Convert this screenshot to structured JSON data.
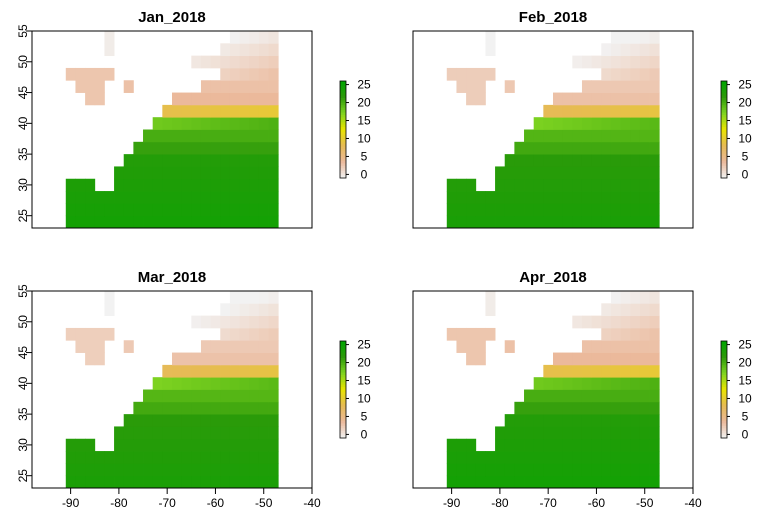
{
  "chart_data": {
    "type": "heatmap",
    "title": "",
    "xlabel": "",
    "ylabel": "",
    "xlim": [
      -98,
      -40
    ],
    "ylim": [
      23,
      55
    ],
    "x_ticks": [
      "-90",
      "-80",
      "-70",
      "-60",
      "-50",
      "-40"
    ],
    "y_ticks": [
      "25",
      "30",
      "35",
      "40",
      "45",
      "50",
      "55"
    ],
    "legend_ticks": [
      "0",
      "5",
      "10",
      "15",
      "20",
      "25"
    ],
    "zlim": [
      -1,
      26
    ],
    "color_stops": [
      "#f2f2f2",
      "#ebb99b",
      "#e6bb54",
      "#e8e400",
      "#7ed321",
      "#2d9a0a",
      "#00a600"
    ],
    "panels": [
      {
        "title": "Jan_2018",
        "month_offset": 0
      },
      {
        "title": "Feb_2018",
        "month_offset": -0.6
      },
      {
        "title": "Mar_2018",
        "month_offset": -0.7
      },
      {
        "title": "Apr_2018",
        "month_offset": 0.0
      }
    ]
  }
}
